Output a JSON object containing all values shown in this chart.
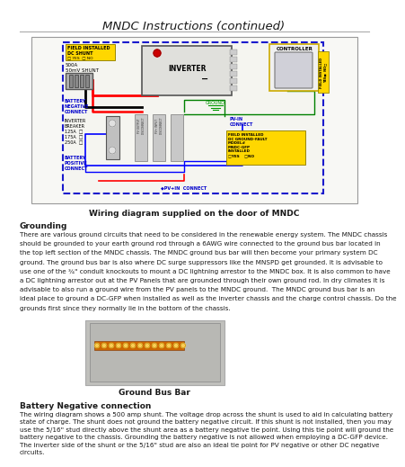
{
  "title": "MNDC Instructions (continued)",
  "title_fontsize": 9.5,
  "bg_color": "#ffffff",
  "text_color": "#1a1a1a",
  "separator_color": "#aaaaaa",
  "wiring_caption": "Wiring diagram supplied on the door of MNDC",
  "grounding_header": "Grounding",
  "grounding_text": "There are various ground circuits that need to be considered in the renewable energy system. The MNDC chassis should be grounded to your earth ground rod through a 6AWG wire connected to the ground bus bar located in the top left section of the MNDC chassis. The MNDC ground bus bar will then become your primary system DC ground. The ground bus bar is also where DC surge suppressors like the MNSPD get grounded. It is advisable to use one of the ¾\" conduit knockouts to mount a DC lightning arrestor to the MNDC box. It is also common to have a DC lightning arrestor out at the PV Panels that are grounded through their own ground rod. In dry climates it is advisable to also run a ground wire from the PV panels to the MNDC ground.  The MNDC ground bus bar is an ideal place to ground a DC-GFP when installed as well as the inverter chassis and the charge control chassis. Do the grounds first since they normally lie in the bottom of the chassis.",
  "bus_bar_caption": "Ground Bus Bar",
  "battery_header": "Battery Negative connection",
  "battery_text": "The wiring diagram shows a 500 amp shunt. The voltage drop across the shunt is used to aid in calculating battery state of charge. The shunt does not ground the battery negative circuit. If this shunt is not installed, then you may use the 5/16\" stud directly above the shunt area as a battery negative tie point. Using this tie point will ground the battery negative to the chassis. Grounding the battery negative is not allowed when employing a DC-GFP device. The inverter side of the shunt or the 5/16\" stud are also an ideal tie point for PV negative or other DC negative circuits.",
  "page_bg": "#ffffff",
  "diagram_border": "#888888",
  "diag_bg": "#f0f0ee",
  "diag_inner_bg": "#e8e8e0"
}
